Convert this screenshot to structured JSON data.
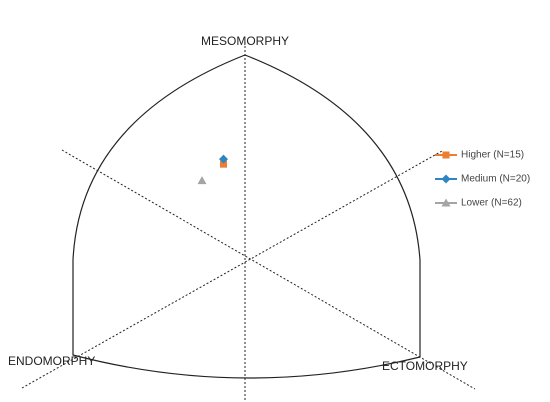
{
  "chart_data": {
    "type": "scatter",
    "labels": {
      "top": "MESOMORPHY",
      "left": "ENDOMORPHY",
      "right": "ECTOMORPHY"
    },
    "xlim": [
      -8,
      8
    ],
    "ylim": [
      -10,
      16
    ],
    "series": [
      {
        "name": "Higher (N=15)",
        "color": "#ed7d31",
        "marker": "square",
        "x": [
          -1.0
        ],
        "y": [
          7.4
        ]
      },
      {
        "name": "Medium (N=20)",
        "color": "#2e86c1",
        "marker": "diamond",
        "x": [
          -1.0
        ],
        "y": [
          7.8
        ]
      },
      {
        "name": "Lower (N=62)",
        "color": "#a5a5a5",
        "marker": "triangle",
        "x": [
          -2.0
        ],
        "y": [
          6.1
        ]
      }
    ]
  }
}
